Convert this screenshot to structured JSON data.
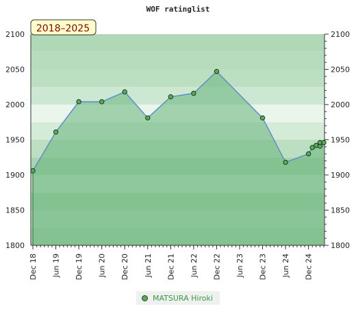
{
  "chart_data": {
    "type": "area",
    "title": "WOF ratinglist",
    "period_badge": "2018–2025",
    "ylim": [
      1800,
      2100
    ],
    "y_ticks": [
      1800,
      1850,
      1900,
      1950,
      2000,
      2050,
      2100
    ],
    "x_range": [
      "2018-12",
      "2025-04"
    ],
    "x_tick_labels": [
      {
        "label": "Dec 18",
        "date": "2018-12"
      },
      {
        "label": "Jun 19",
        "date": "2019-06"
      },
      {
        "label": "Dec 19",
        "date": "2019-12"
      },
      {
        "label": "Jun 20",
        "date": "2020-06"
      },
      {
        "label": "Dec 20",
        "date": "2020-12"
      },
      {
        "label": "Jun 21",
        "date": "2021-06"
      },
      {
        "label": "Dec 21",
        "date": "2021-12"
      },
      {
        "label": "Jun 22",
        "date": "2022-06"
      },
      {
        "label": "Dec 22",
        "date": "2022-12"
      },
      {
        "label": "Jun 23",
        "date": "2023-06"
      },
      {
        "label": "Dec 23",
        "date": "2023-12"
      },
      {
        "label": "Jun 24",
        "date": "2024-06"
      },
      {
        "label": "Dec 24",
        "date": "2024-12"
      }
    ],
    "series": [
      {
        "name": "MATSURA Hiroki",
        "points": [
          {
            "date": "2018-12",
            "y": 1906
          },
          {
            "date": "2019-06",
            "y": 1961
          },
          {
            "date": "2019-12",
            "y": 2004
          },
          {
            "date": "2020-06",
            "y": 2004
          },
          {
            "date": "2020-12",
            "y": 2018
          },
          {
            "date": "2021-06",
            "y": 1981
          },
          {
            "date": "2021-12",
            "y": 2011
          },
          {
            "date": "2022-06",
            "y": 2016
          },
          {
            "date": "2022-12",
            "y": 2047
          },
          {
            "date": "2023-12",
            "y": 1981
          },
          {
            "date": "2024-06",
            "y": 1918
          },
          {
            "date": "2024-12",
            "y": 1930
          },
          {
            "date": "2025-01",
            "y": 1939
          },
          {
            "date": "2025-02",
            "y": 1942
          },
          {
            "date": "2025-03",
            "y": 1941
          },
          {
            "date": "2025-03",
            "y": 1946
          },
          {
            "date": "2025-04",
            "y": 1946
          }
        ]
      }
    ],
    "grid": true,
    "legend_position": "bottom-center",
    "colors": {
      "line": "#5b8fc9",
      "marker_fill": "#5aaa5a",
      "area_fill": "#66b27a",
      "badge_bg": "#ffffcc",
      "badge_text": "#8b0000"
    }
  }
}
